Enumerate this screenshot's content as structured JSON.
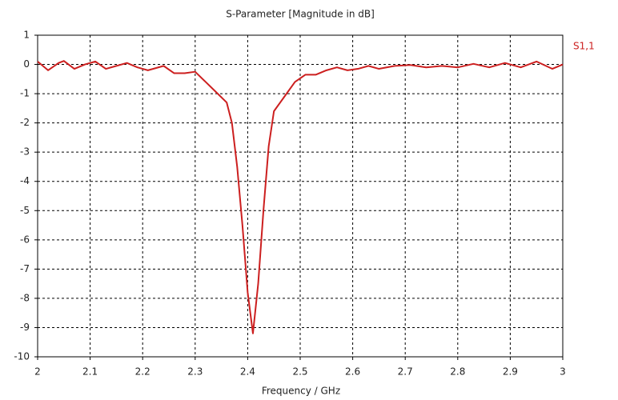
{
  "chart_data": {
    "type": "line",
    "title": "S-Parameter [Magnitude in dB]",
    "x_label": "Frequency / GHz",
    "x": [
      2.0,
      2.02,
      2.04,
      2.05,
      2.07,
      2.09,
      2.11,
      2.13,
      2.15,
      2.17,
      2.19,
      2.21,
      2.24,
      2.26,
      2.28,
      2.3,
      2.32,
      2.34,
      2.36,
      2.37,
      2.38,
      2.39,
      2.4,
      2.41,
      2.42,
      2.43,
      2.44,
      2.45,
      2.47,
      2.49,
      2.51,
      2.53,
      2.55,
      2.57,
      2.59,
      2.61,
      2.63,
      2.65,
      2.68,
      2.71,
      2.74,
      2.77,
      2.8,
      2.83,
      2.86,
      2.89,
      2.92,
      2.95,
      2.98,
      3.0
    ],
    "series": [
      {
        "name": "S1,1",
        "color": "#cc1f1f",
        "values": [
          0.1,
          -0.2,
          0.05,
          0.12,
          -0.15,
          0.0,
          0.1,
          -0.15,
          -0.05,
          0.05,
          -0.1,
          -0.2,
          -0.05,
          -0.3,
          -0.3,
          -0.25,
          -0.6,
          -0.95,
          -1.3,
          -2.0,
          -3.5,
          -5.5,
          -7.8,
          -9.2,
          -7.5,
          -5.0,
          -2.8,
          -1.6,
          -1.1,
          -0.6,
          -0.35,
          -0.35,
          -0.2,
          -0.1,
          -0.2,
          -0.15,
          -0.05,
          -0.15,
          -0.05,
          -0.02,
          -0.1,
          -0.05,
          -0.1,
          0.02,
          -0.1,
          0.05,
          -0.1,
          0.1,
          -0.15,
          0.0
        ]
      }
    ],
    "xlim": [
      2,
      3
    ],
    "xticks": [
      2,
      2.1,
      2.2,
      2.3,
      2.4,
      2.5,
      2.6,
      2.7,
      2.8,
      2.9,
      3
    ],
    "ylim": [
      -10,
      1
    ],
    "yticks": [
      1,
      0,
      -1,
      -2,
      -3,
      -4,
      -5,
      -6,
      -7,
      -8,
      -9,
      -10
    ],
    "grid": true
  }
}
